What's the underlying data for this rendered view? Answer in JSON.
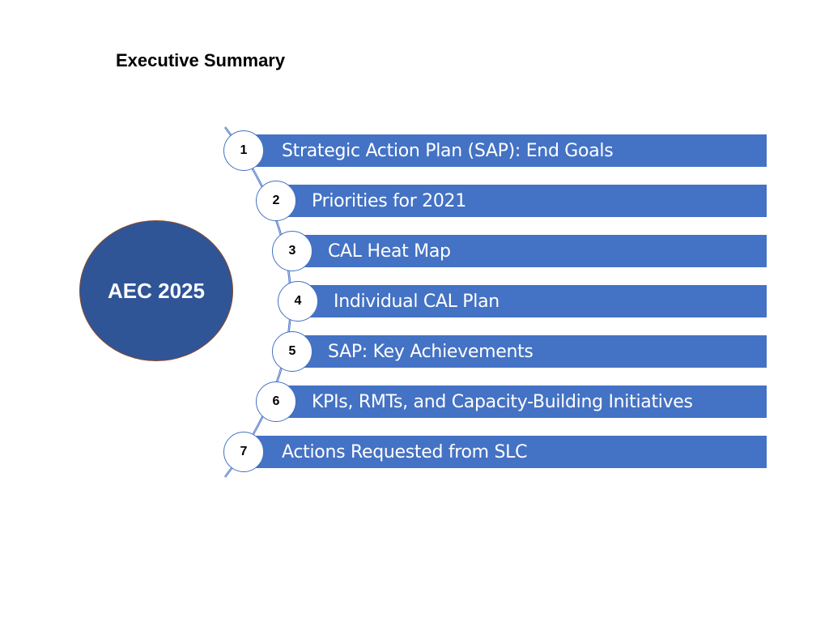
{
  "slide": {
    "title": "Executive Summary",
    "hub_label": "AEC 2025"
  },
  "colors": {
    "hub_fill": "#2f5597",
    "hub_border": "#8b4a2b",
    "bar_fill": "#4472c4",
    "number_circle_border": "#4472c4",
    "arc_stroke": "#4472c4"
  },
  "agenda": {
    "items": [
      {
        "number": "1",
        "label": "Strategic Action Plan (SAP): End Goals"
      },
      {
        "number": "2",
        "label": "Priorities for 2021"
      },
      {
        "number": "3",
        "label": "CAL Heat Map"
      },
      {
        "number": "4",
        "label": "Individual CAL Plan"
      },
      {
        "number": "5",
        "label": "SAP: Key Achievements"
      },
      {
        "number": "6",
        "label": "KPIs, RMTs, and Capacity-Building Initiatives"
      },
      {
        "number": "7",
        "label": "Actions Requested from SLC"
      }
    ]
  }
}
